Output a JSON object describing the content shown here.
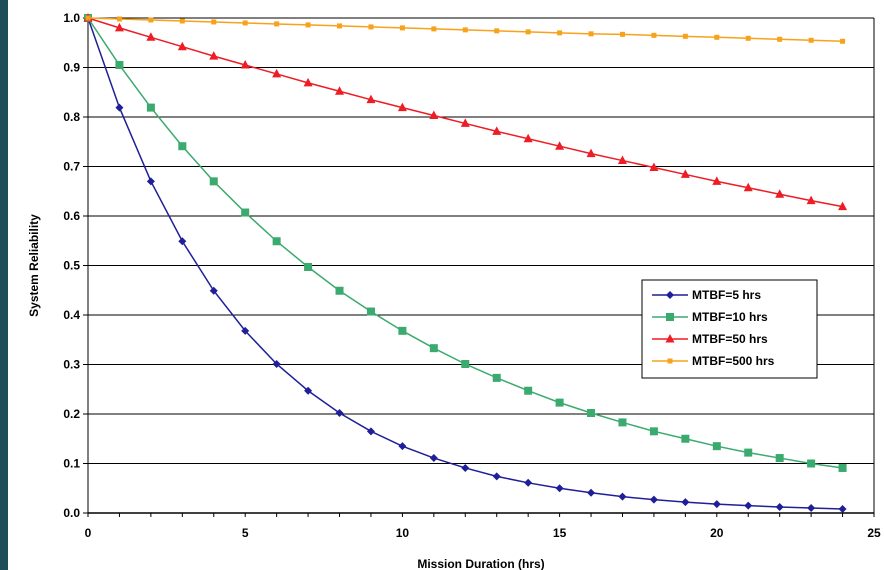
{
  "chart_data": {
    "type": "line",
    "xlabel": "Mission Duration (hrs)",
    "ylabel": "System Reliability",
    "xlim": [
      0,
      25
    ],
    "ylim": [
      0.0,
      1.0
    ],
    "x_ticks": [
      "0",
      "5",
      "10",
      "15",
      "20",
      "25"
    ],
    "y_ticks": [
      "0.0",
      "0.1",
      "0.2",
      "0.3",
      "0.4",
      "0.5",
      "0.6",
      "0.7",
      "0.8",
      "0.9",
      "1.0"
    ],
    "grid": "horizontal",
    "legend_position": "right-center",
    "x": [
      0,
      1,
      2,
      3,
      4,
      5,
      6,
      7,
      8,
      9,
      10,
      11,
      12,
      13,
      14,
      15,
      16,
      17,
      18,
      19,
      20,
      21,
      22,
      23,
      24
    ],
    "series": [
      {
        "name": "MTBF=5 hrs",
        "color": "#1f1f99",
        "marker": "diamond",
        "values": [
          1.0,
          0.819,
          0.67,
          0.549,
          0.449,
          0.368,
          0.301,
          0.247,
          0.202,
          0.165,
          0.135,
          0.111,
          0.091,
          0.074,
          0.061,
          0.05,
          0.041,
          0.033,
          0.027,
          0.022,
          0.018,
          0.015,
          0.012,
          0.01,
          0.008
        ]
      },
      {
        "name": "MTBF=10 hrs",
        "color": "#3aaa6e",
        "marker": "square",
        "values": [
          1.0,
          0.905,
          0.819,
          0.741,
          0.67,
          0.607,
          0.549,
          0.497,
          0.449,
          0.407,
          0.368,
          0.333,
          0.301,
          0.273,
          0.247,
          0.223,
          0.202,
          0.183,
          0.165,
          0.15,
          0.135,
          0.122,
          0.111,
          0.1,
          0.091
        ]
      },
      {
        "name": "MTBF=50 hrs",
        "color": "#ee1c24",
        "marker": "triangle",
        "values": [
          1.0,
          0.98,
          0.961,
          0.942,
          0.923,
          0.905,
          0.887,
          0.869,
          0.852,
          0.835,
          0.819,
          0.803,
          0.787,
          0.771,
          0.756,
          0.741,
          0.726,
          0.712,
          0.698,
          0.684,
          0.67,
          0.657,
          0.644,
          0.631,
          0.619
        ]
      },
      {
        "name": "MTBF=500 hrs",
        "color": "#f7a21a",
        "marker": "square-small",
        "values": [
          1.0,
          0.998,
          0.996,
          0.994,
          0.992,
          0.99,
          0.988,
          0.986,
          0.984,
          0.982,
          0.98,
          0.978,
          0.976,
          0.974,
          0.972,
          0.97,
          0.968,
          0.967,
          0.965,
          0.963,
          0.961,
          0.959,
          0.957,
          0.955,
          0.953
        ]
      }
    ]
  }
}
